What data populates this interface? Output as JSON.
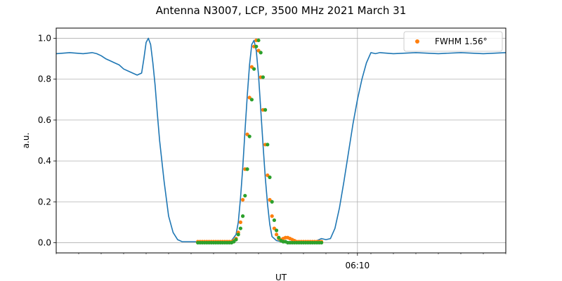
{
  "chart_data": {
    "type": "line",
    "title": "Antenna N3007, LCP, 3500 MHz 2021 March 31",
    "xlabel": "UT",
    "ylabel": "a.u.",
    "xlim": [
      0,
      100
    ],
    "ylim": [
      -0.05,
      1.05
    ],
    "yticks": [
      0.0,
      0.2,
      0.4,
      0.6,
      0.8,
      1.0
    ],
    "ytick_labels": [
      "0.0",
      "0.2",
      "0.4",
      "0.6",
      "0.8",
      "1.0"
    ],
    "xticks": [
      {
        "x": 67,
        "label": "06:10"
      }
    ],
    "grid": true,
    "legend": {
      "placement": "top-right",
      "entries": [
        "FWHM 1.56$^\\circ$"
      ],
      "display": [
        "FWHM 1.56°"
      ]
    },
    "colors": {
      "line": "#1f77b4",
      "points_orange": "#ff7f0e",
      "points_green": "#2ca02c"
    },
    "series": [
      {
        "kind": "line",
        "x": [
          0,
          3,
          6,
          8,
          9,
          10,
          11,
          12,
          13,
          14,
          15,
          16,
          17,
          18,
          19,
          19.5,
          20,
          20.5,
          21,
          21.5,
          22,
          22.5,
          23,
          24,
          25,
          26,
          27,
          28,
          29,
          30,
          31,
          32,
          33,
          34,
          35,
          36,
          37,
          38,
          39,
          40,
          40.5,
          41,
          41.5,
          42,
          42.5,
          43,
          43.5,
          44,
          44.5,
          45,
          45.5,
          46,
          46.5,
          47,
          47.5,
          48,
          49,
          50,
          51,
          52,
          53,
          54,
          55,
          56,
          57,
          58,
          59,
          60,
          61,
          62,
          63,
          64,
          65,
          66,
          67,
          68,
          69,
          70,
          71,
          72,
          75,
          80,
          85,
          90,
          95,
          100
        ],
        "y": [
          0.925,
          0.93,
          0.925,
          0.93,
          0.925,
          0.915,
          0.9,
          0.89,
          0.88,
          0.87,
          0.85,
          0.84,
          0.83,
          0.82,
          0.83,
          0.9,
          0.98,
          1.0,
          0.97,
          0.88,
          0.77,
          0.63,
          0.5,
          0.3,
          0.13,
          0.05,
          0.015,
          0.005,
          0.005,
          0.005,
          0.005,
          0.005,
          0.005,
          0.005,
          0.005,
          0.005,
          0.005,
          0.005,
          0.01,
          0.04,
          0.1,
          0.22,
          0.37,
          0.55,
          0.72,
          0.87,
          0.97,
          0.99,
          0.94,
          0.82,
          0.65,
          0.48,
          0.32,
          0.19,
          0.09,
          0.03,
          0.01,
          0.005,
          0.005,
          0.005,
          0.005,
          0.005,
          0.005,
          0.005,
          0.005,
          0.01,
          0.02,
          0.015,
          0.02,
          0.07,
          0.17,
          0.3,
          0.44,
          0.58,
          0.7,
          0.8,
          0.88,
          0.93,
          0.925,
          0.93,
          0.925,
          0.93,
          0.925,
          0.93,
          0.925,
          0.93
        ],
        "rendered": {
          "x": [
            0,
            3,
            6,
            8,
            9,
            10,
            11,
            12,
            13,
            14,
            15,
            16,
            17,
            18,
            19,
            19.5,
            20,
            20.5,
            21,
            21.5,
            22,
            22.5,
            23,
            24,
            25,
            26,
            27,
            28,
            29,
            30,
            31,
            32,
            33,
            34,
            35,
            36,
            37,
            38,
            39,
            40,
            40.5,
            41,
            41.5,
            42,
            42.5,
            43,
            43.5,
            44,
            44.5,
            45,
            45.5,
            46,
            46.5,
            47,
            47.5,
            48,
            49,
            50,
            51,
            52,
            53,
            54,
            55,
            56,
            57,
            58,
            59,
            60,
            61,
            62,
            63,
            64,
            65,
            66,
            67,
            68,
            69,
            70,
            71,
            72,
            75,
            80,
            85,
            90,
            95,
            100
          ],
          "y": [
            0.925,
            0.93,
            0.925,
            0.93,
            0.925,
            0.915,
            0.9,
            0.89,
            0.88,
            0.87,
            0.85,
            0.84,
            0.83,
            0.82,
            0.83,
            0.9,
            0.98,
            1.0,
            0.97,
            0.88,
            0.77,
            0.63,
            0.5,
            0.3,
            0.13,
            0.05,
            0.015,
            0.005,
            0.005,
            0.005,
            0.005,
            0.005,
            0.005,
            0.005,
            0.005,
            0.005,
            0.005,
            0.005,
            0.01,
            0.04,
            0.1,
            0.22,
            0.37,
            0.55,
            0.72,
            0.87,
            0.97,
            0.99,
            0.94,
            0.82,
            0.65,
            0.48,
            0.32,
            0.19,
            0.09,
            0.03,
            0.01,
            0.005,
            0.005,
            0.005,
            0.005,
            0.005,
            0.005,
            0.005,
            0.005,
            0.01,
            0.02,
            0.015,
            0.02,
            0.07,
            0.17,
            0.3,
            0.44,
            0.58,
            0.7,
            0.8,
            0.88,
            0.93,
            0.925,
            0.93,
            0.925,
            0.93,
            0.925,
            0.93,
            0.925,
            0.93
          ]
        }
      },
      {
        "kind": "points",
        "name": "FWHM 1.56$^\\circ$",
        "x": [
          31.5,
          32,
          32.5,
          33,
          33.5,
          34,
          34.5,
          35,
          35.5,
          36,
          36.5,
          37,
          37.5,
          38,
          38.5,
          39,
          39.5,
          40,
          40.5,
          41,
          41.5,
          42,
          42.5,
          43,
          43.5,
          44,
          44.5,
          45,
          45.5,
          46,
          46.5,
          47,
          47.5,
          48,
          48.5,
          49,
          49.5,
          50,
          50.5,
          51,
          51.5,
          52,
          52.5,
          53,
          53.5,
          54,
          54.5,
          55,
          55.5,
          56,
          56.5,
          57,
          57.5,
          58,
          58.5,
          59
        ],
        "y": [
          0.005,
          0.005,
          0.005,
          0.005,
          0.005,
          0.005,
          0.005,
          0.005,
          0.005,
          0.005,
          0.005,
          0.005,
          0.005,
          0.005,
          0.005,
          0.005,
          0.01,
          0.02,
          0.05,
          0.1,
          0.21,
          0.36,
          0.53,
          0.71,
          0.86,
          0.96,
          0.99,
          0.94,
          0.81,
          0.65,
          0.48,
          0.33,
          0.21,
          0.13,
          0.07,
          0.04,
          0.02,
          0.015,
          0.02,
          0.025,
          0.025,
          0.02,
          0.015,
          0.01,
          0.005,
          0.005,
          0.005,
          0.005,
          0.005,
          0.005,
          0.005,
          0.005,
          0.005,
          0.005,
          0.005,
          0.005
        ]
      },
      {
        "kind": "points",
        "x": [
          31.5,
          32,
          32.5,
          33,
          33.5,
          34,
          34.5,
          35,
          35.5,
          36,
          36.5,
          37,
          37.5,
          38,
          38.5,
          39,
          39.5,
          40,
          40.5,
          41,
          41.5,
          42,
          42.5,
          43,
          43.5,
          44,
          44.5,
          45,
          45.5,
          46,
          46.5,
          47,
          47.5,
          48,
          48.5,
          49,
          49.5,
          50,
          50.5,
          51,
          51.5,
          52,
          52.5,
          53,
          53.5,
          54,
          54.5,
          55,
          55.5,
          56,
          56.5,
          57,
          57.5,
          58,
          58.5,
          59
        ],
        "y": [
          0.0,
          0.0,
          0.0,
          0.0,
          0.0,
          0.0,
          0.0,
          0.0,
          0.0,
          0.0,
          0.0,
          0.0,
          0.0,
          0.0,
          0.0,
          0.0,
          0.005,
          0.015,
          0.04,
          0.07,
          0.13,
          0.23,
          0.36,
          0.52,
          0.7,
          0.85,
          0.96,
          0.99,
          0.93,
          0.81,
          0.65,
          0.48,
          0.32,
          0.2,
          0.11,
          0.06,
          0.025,
          0.01,
          0.005,
          0.005,
          0.0,
          0.0,
          0.0,
          0.0,
          0.0,
          0.0,
          0.0,
          0.0,
          0.0,
          0.0,
          0.0,
          0.0,
          0.0,
          0.0,
          0.0,
          0.0
        ],
        "rendered": {
          "x": [
            31.5,
            32,
            32.5,
            33,
            33.5,
            34,
            34.5,
            35,
            35.5,
            36,
            36.5,
            37,
            37.5,
            38,
            38.5,
            39,
            39.5,
            40,
            40.5,
            41,
            41.5,
            42,
            42.5,
            43,
            43.5,
            44,
            44.5,
            45,
            45.5,
            46,
            46.5,
            47,
            47.5,
            48,
            48.5,
            49,
            49.5,
            50,
            50.5,
            51,
            51.5,
            52,
            52.5,
            53,
            53.5,
            54,
            54.5,
            55,
            55.5,
            56,
            56.5,
            57,
            57.5,
            58,
            58.5,
            59
          ],
          "y": [
            0.0,
            0.0,
            0.0,
            0.0,
            0.0,
            0.0,
            0.0,
            0.0,
            0.0,
            0.0,
            0.0,
            0.0,
            0.0,
            0.0,
            0.0,
            0.0,
            0.005,
            0.015,
            0.04,
            0.07,
            0.13,
            0.23,
            0.36,
            0.52,
            0.7,
            0.85,
            0.96,
            0.99,
            0.93,
            0.81,
            0.65,
            0.48,
            0.32,
            0.2,
            0.11,
            0.06,
            0.025,
            0.01,
            0.005,
            0.005,
            0.0,
            0.0,
            0.0,
            0.0,
            0.0,
            0.0,
            0.0,
            0.0,
            0.0,
            0.0,
            0.0,
            0.0,
            0.0,
            0.0,
            0.0,
            0.0
          ]
        }
      }
    ]
  }
}
